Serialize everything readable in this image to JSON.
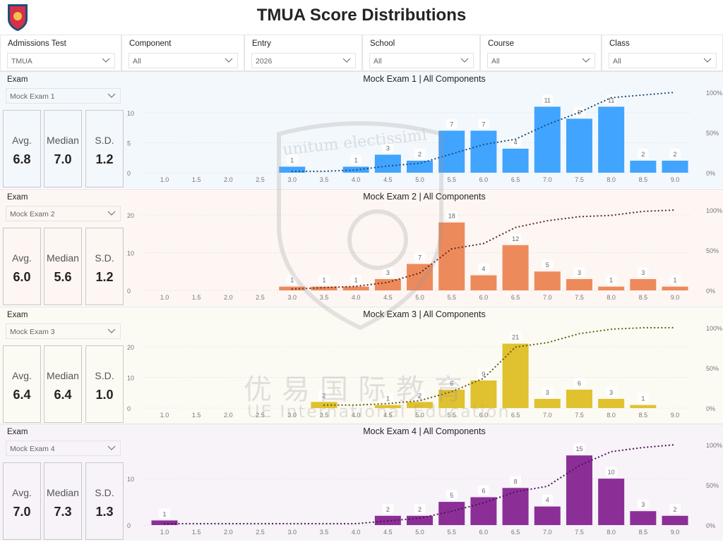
{
  "header": {
    "title": "TMUA Score Distributions",
    "logo": "UE International Education crest"
  },
  "filters": [
    {
      "label": "Admissions Test",
      "value": "TMUA"
    },
    {
      "label": "Component",
      "value": "All"
    },
    {
      "label": "Entry",
      "value": "2026"
    },
    {
      "label": "School",
      "value": "All"
    },
    {
      "label": "Course",
      "value": "All"
    },
    {
      "label": "Class",
      "value": "All"
    }
  ],
  "watermark": {
    "line1": "优易国际教育",
    "line2": "UE International Education",
    "motto": "unitum electissimi"
  },
  "panels": [
    {
      "exam_label": "Exam",
      "exam_value": "Mock Exam 1",
      "kpis": [
        {
          "label": "Avg.",
          "value": "6.8"
        },
        {
          "label": "Median",
          "value": "7.0"
        },
        {
          "label": "S.D.",
          "value": "1.2"
        }
      ],
      "background": "#f3f8fd"
    },
    {
      "exam_label": "Exam",
      "exam_value": "Mock Exam 2",
      "kpis": [
        {
          "label": "Avg.",
          "value": "6.0"
        },
        {
          "label": "Median",
          "value": "5.6"
        },
        {
          "label": "S.D.",
          "value": "1.2"
        }
      ],
      "background": "#fdf6f3"
    },
    {
      "exam_label": "Exam",
      "exam_value": "Mock Exam 3",
      "kpis": [
        {
          "label": "Avg.",
          "value": "6.4"
        },
        {
          "label": "Median",
          "value": "6.4"
        },
        {
          "label": "S.D.",
          "value": "1.0"
        }
      ],
      "background": "#fcfbf3"
    },
    {
      "exam_label": "Exam",
      "exam_value": "Mock Exam 4",
      "kpis": [
        {
          "label": "Avg.",
          "value": "7.0"
        },
        {
          "label": "Median",
          "value": "7.3"
        },
        {
          "label": "S.D.",
          "value": "1.3"
        }
      ],
      "background": "#f7f3f9"
    }
  ],
  "chart_data": [
    {
      "type": "bar",
      "title": "Mock Exam 1 | All Components",
      "categories": [
        "1.0",
        "1.5",
        "2.0",
        "2.5",
        "3.0",
        "3.5",
        "4.0",
        "4.5",
        "5.0",
        "5.5",
        "6.0",
        "6.5",
        "7.0",
        "7.5",
        "8.0",
        "8.5",
        "9.0"
      ],
      "values": [
        0,
        0,
        0,
        0,
        1,
        0,
        1,
        3,
        2,
        7,
        7,
        4,
        11,
        9,
        11,
        2,
        2
      ],
      "yticks": [
        0,
        5,
        10
      ],
      "ylim": [
        0,
        13.4
      ],
      "y2ticks": [
        "0%",
        "50%",
        "100%"
      ],
      "y2lim": [
        0,
        100
      ],
      "cumulative_line": true,
      "color": "#41a4ff",
      "line_color": "#1d4f7c",
      "grid": true
    },
    {
      "type": "bar",
      "title": "Mock Exam 2 | All Components",
      "categories": [
        "1.0",
        "1.5",
        "2.0",
        "2.5",
        "3.0",
        "3.5",
        "4.0",
        "4.5",
        "5.0",
        "5.5",
        "6.0",
        "6.5",
        "7.0",
        "7.5",
        "8.0",
        "8.5",
        "9.0"
      ],
      "values": [
        0,
        0,
        0,
        0,
        1,
        1,
        1,
        3,
        7,
        18,
        4,
        12,
        5,
        3,
        1,
        3,
        1
      ],
      "yticks": [
        0,
        10,
        20
      ],
      "ylim": [
        0,
        21.3
      ],
      "y2ticks": [
        "0%",
        "50%",
        "100%"
      ],
      "y2lim": [
        0,
        100
      ],
      "cumulative_line": true,
      "color": "#ec8a5c",
      "line_color": "#5e2a1c",
      "grid": true
    },
    {
      "type": "bar",
      "title": "Mock Exam 3 | All Components",
      "categories": [
        "1.0",
        "1.5",
        "2.0",
        "2.5",
        "3.0",
        "3.5",
        "4.0",
        "4.5",
        "5.0",
        "5.5",
        "6.0",
        "6.5",
        "7.0",
        "7.5",
        "8.0",
        "8.5",
        "9.0"
      ],
      "values": [
        0,
        0,
        0,
        0,
        0,
        2,
        0,
        1,
        2,
        6,
        9,
        21,
        3,
        6,
        3,
        1,
        0
      ],
      "yticks": [
        0,
        10,
        20
      ],
      "ylim": [
        0,
        26.2
      ],
      "y2ticks": [
        "0%",
        "50%",
        "100%"
      ],
      "y2lim": [
        0,
        100
      ],
      "cumulative_line": true,
      "color": "#e0c12f",
      "line_color": "#6b5a10",
      "grid": true
    },
    {
      "type": "bar",
      "title": "Mock Exam 4 | All Components",
      "categories": [
        "1.0",
        "1.5",
        "2.0",
        "2.5",
        "3.0",
        "3.5",
        "4.0",
        "4.5",
        "5.0",
        "5.5",
        "6.0",
        "6.5",
        "7.0",
        "7.5",
        "8.0",
        "8.5",
        "9.0"
      ],
      "values": [
        1,
        0,
        0,
        0,
        0,
        0,
        0,
        2,
        2,
        5,
        6,
        8,
        4,
        15,
        10,
        3,
        2
      ],
      "yticks": [
        0,
        10
      ],
      "ylim": [
        0,
        17.3
      ],
      "y2ticks": [
        "0%",
        "50%",
        "100%"
      ],
      "y2lim": [
        0,
        100
      ],
      "cumulative_line": true,
      "color": "#8b2f97",
      "line_color": "#4a1450",
      "grid": true
    }
  ]
}
